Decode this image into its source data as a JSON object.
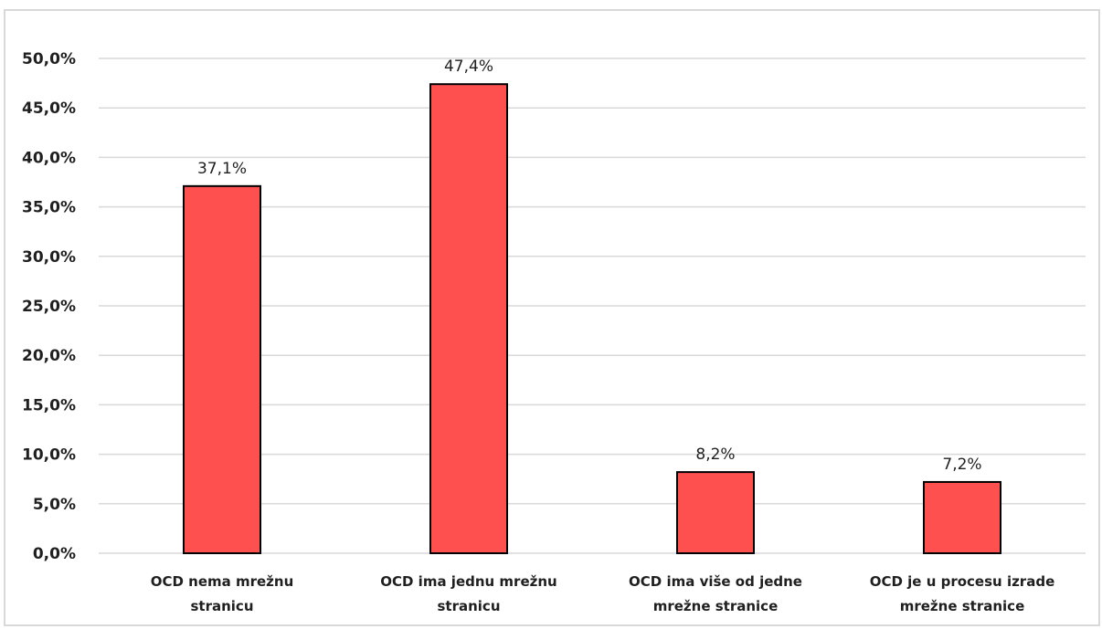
{
  "chart_data": {
    "type": "bar",
    "categories": [
      [
        "OCD nema mrežnu",
        "stranicu"
      ],
      [
        "OCD ima jednu mrežnu",
        "stranicu"
      ],
      [
        "OCD ima više od jedne",
        "mrežne stranice"
      ],
      [
        "OCD je u procesu izrade",
        "mrežne stranice"
      ]
    ],
    "values": [
      37.1,
      47.4,
      8.2,
      7.2
    ],
    "data_labels": [
      "37,1%",
      "47,4%",
      "8,2%",
      "7,2%"
    ],
    "y_ticks": [
      "0,0%",
      "5,0%",
      "10,0%",
      "15,0%",
      "20,0%",
      "25,0%",
      "30,0%",
      "35,0%",
      "40,0%",
      "45,0%",
      "50,0%"
    ],
    "ylim": [
      0,
      50
    ],
    "grid": true,
    "legend": "none",
    "colors": {
      "bar_fill": "#ff5050",
      "bar_stroke": "#000000",
      "grid": "#d9d9d9"
    }
  }
}
